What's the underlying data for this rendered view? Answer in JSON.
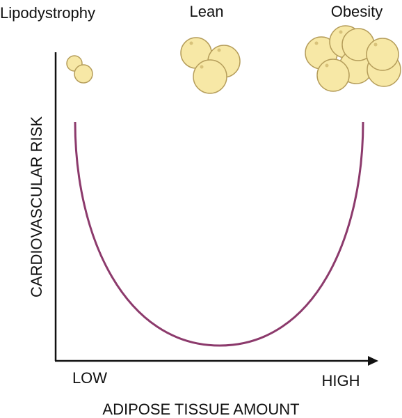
{
  "labels": {
    "lipodystrophy": "Lipodystrophy",
    "lean": "Lean",
    "obesity": "Obesity"
  },
  "y_axis": {
    "title": "CARDIOVASCULAR RISK"
  },
  "x_axis": {
    "title": "ADIPOSE TISSUE AMOUNT",
    "low": "LOW",
    "high": "HIGH"
  }
}
